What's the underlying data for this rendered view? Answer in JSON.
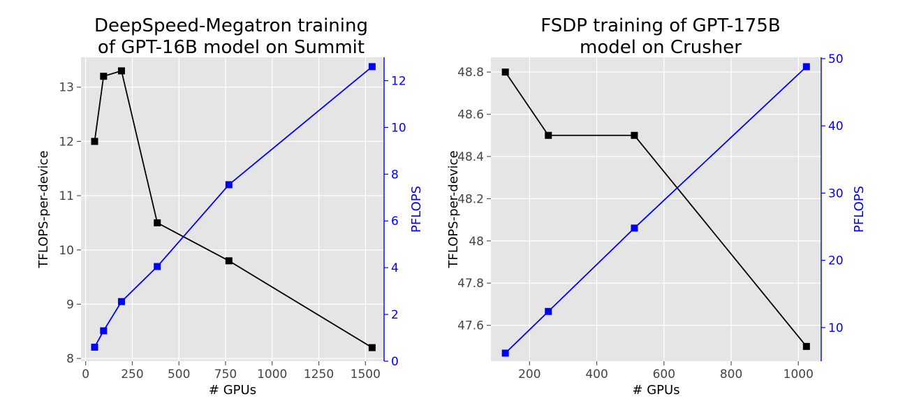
{
  "chart_data": [
    {
      "type": "line",
      "title": [
        "DeepSpeed-Megatron training",
        "of GPT-16B model on Summit"
      ],
      "xlabel": "# GPUs",
      "ylabel": "TFLOPS-per-device",
      "y2label": "PFLOPS",
      "xlim": [
        -25,
        1600
      ],
      "ylim": [
        7.95,
        13.55
      ],
      "y2lim": [
        0,
        13.0
      ],
      "xticks": [
        0,
        250,
        500,
        750,
        1000,
        1250,
        1500
      ],
      "yticks": [
        8,
        9,
        10,
        11,
        12,
        13
      ],
      "y2ticks": [
        0,
        2,
        4,
        6,
        8,
        10,
        12
      ],
      "grid": true,
      "series": [
        {
          "name": "TFLOPS-per-device",
          "axis": "left",
          "color": "#000000",
          "x": [
            48,
            96,
            192,
            384,
            768,
            1536
          ],
          "values": [
            12.0,
            13.2,
            13.3,
            10.5,
            9.8,
            8.2
          ]
        },
        {
          "name": "PFLOPS",
          "axis": "right",
          "color": "#0000ff",
          "x": [
            48,
            96,
            192,
            384,
            768,
            1536
          ],
          "values": [
            0.6,
            1.3,
            2.55,
            4.05,
            7.55,
            12.6
          ]
        }
      ]
    },
    {
      "type": "line",
      "title": [
        "FSDP training of GPT-175B",
        "model on Crusher"
      ],
      "xlabel": "# GPUs",
      "ylabel": "TFLOPS-per-device",
      "y2label": "PFLOPS",
      "xlim": [
        85,
        1068
      ],
      "ylim": [
        47.43,
        48.87
      ],
      "y2lim": [
        5.0,
        50.2
      ],
      "xticks": [
        200,
        400,
        600,
        800,
        1000
      ],
      "yticks": [
        47.6,
        47.8,
        48.0,
        48.2,
        48.4,
        48.6,
        48.8
      ],
      "y2ticks": [
        10,
        20,
        30,
        40,
        50
      ],
      "grid": true,
      "series": [
        {
          "name": "TFLOPS-per-device",
          "axis": "left",
          "color": "#000000",
          "x": [
            128,
            256,
            512,
            1024
          ],
          "values": [
            48.8,
            48.5,
            48.5,
            47.5
          ]
        },
        {
          "name": "PFLOPS",
          "axis": "right",
          "color": "#0000ff",
          "x": [
            128,
            256,
            512,
            1024
          ],
          "values": [
            6.2,
            12.4,
            24.8,
            48.8
          ]
        }
      ]
    }
  ]
}
